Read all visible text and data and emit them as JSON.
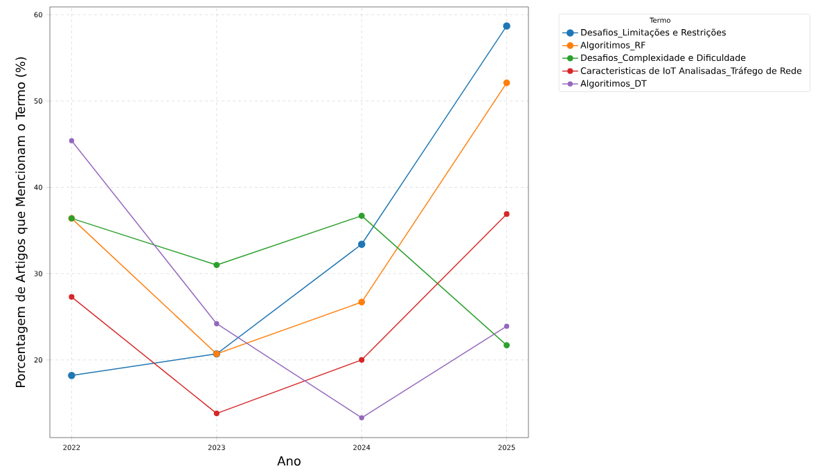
{
  "chart_data": {
    "type": "line",
    "xlabel": "Ano",
    "ylabel": "Porcentagem de Artigos que Mencionam o Termo (%)",
    "legend_title": "Termo",
    "x": [
      2022,
      2023,
      2024,
      2025
    ],
    "series": [
      {
        "name": "Desafios_Limitações e Restrições",
        "color": "#1f77b4",
        "values": [
          18.2,
          20.7,
          33.4,
          58.7
        ]
      },
      {
        "name": "Algoritimos_RF",
        "color": "#ff7f0e",
        "values": [
          36.4,
          20.7,
          26.7,
          52.1
        ]
      },
      {
        "name": "Desafios_Complexidade e Dificuldade",
        "color": "#2ca02c",
        "values": [
          36.4,
          31.0,
          36.7,
          21.7
        ]
      },
      {
        "name": "Caracteristicas de IoT Analisadas_Tráfego de Rede",
        "color": "#d62728",
        "values": [
          27.3,
          13.8,
          20.0,
          36.9
        ]
      },
      {
        "name": "Algoritimos_DT",
        "color": "#9467bd",
        "values": [
          45.4,
          24.2,
          13.3,
          23.9
        ]
      }
    ],
    "xlim": [
      2021.85,
      2025.15
    ],
    "ylim": [
      11.0,
      60.9
    ],
    "xticks": [
      2022,
      2023,
      2024,
      2025
    ],
    "yticks": [
      20,
      30,
      40,
      50,
      60
    ],
    "grid": true,
    "legend": "right",
    "marker": "circle",
    "line_style": "solid"
  }
}
